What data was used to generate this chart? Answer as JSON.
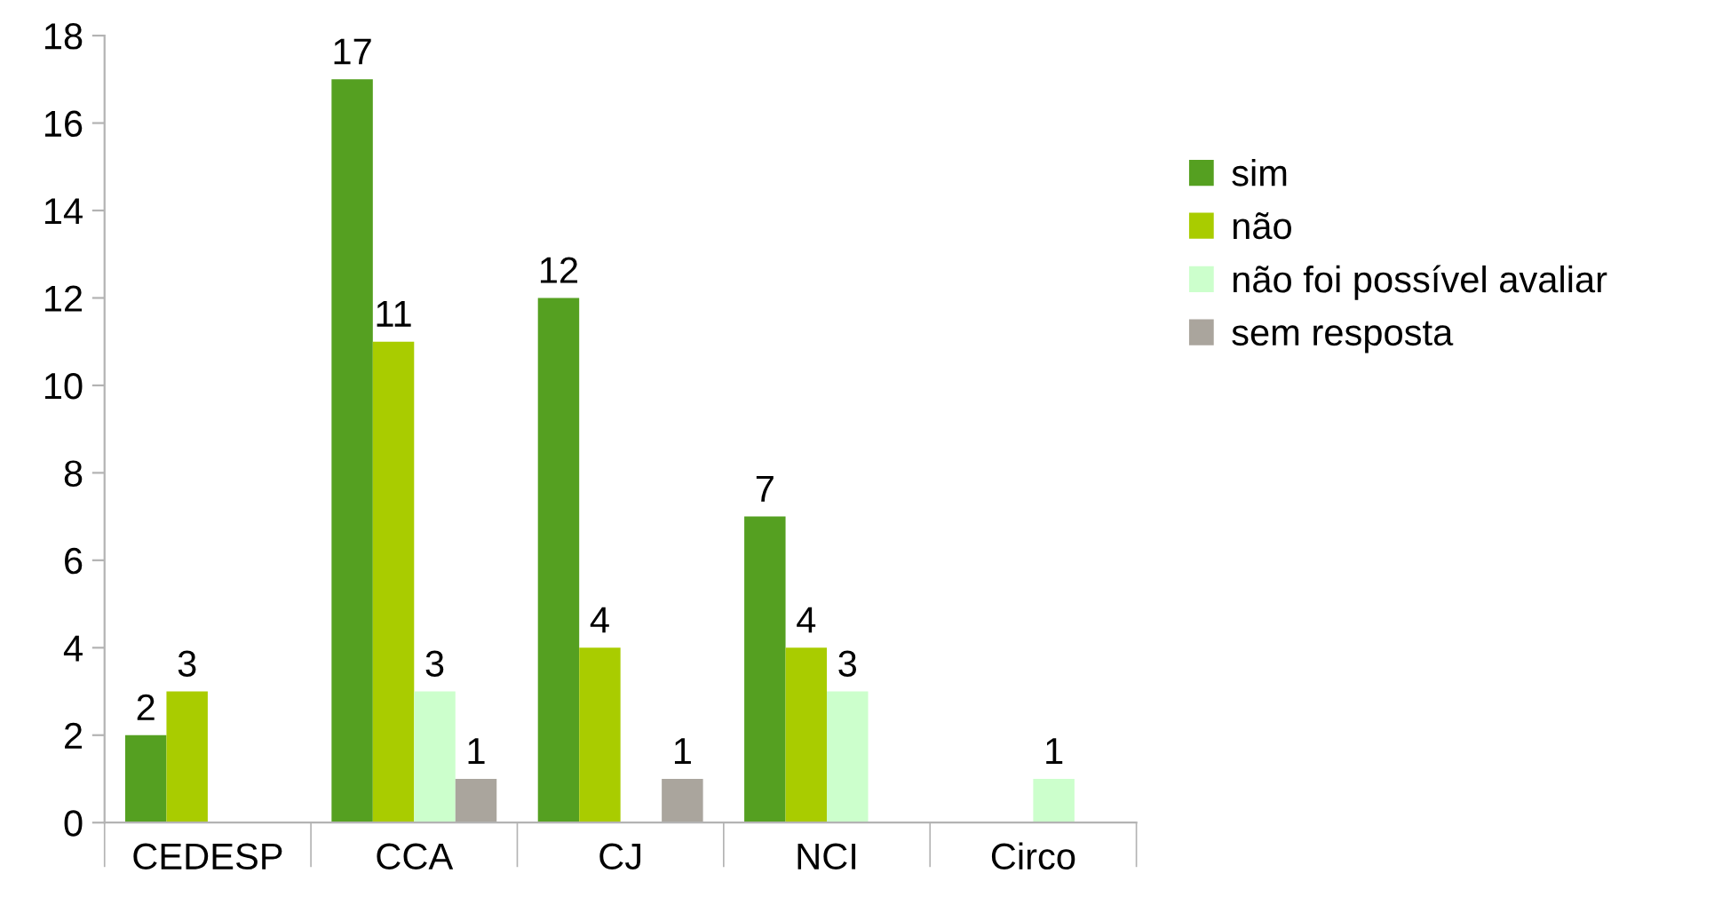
{
  "chart_data": {
    "type": "bar",
    "categories": [
      "CEDESP",
      "CCA",
      "CJ",
      "NCI",
      "Circo"
    ],
    "series": [
      {
        "name": "sim",
        "color": "#55a021",
        "values": [
          2,
          17,
          12,
          7,
          null
        ]
      },
      {
        "name": "não",
        "color": "#a9cc00",
        "values": [
          3,
          11,
          4,
          4,
          null
        ]
      },
      {
        "name": "não foi possível avaliar",
        "color": "#ccffcc",
        "values": [
          null,
          3,
          null,
          3,
          1
        ]
      },
      {
        "name": "sem resposta",
        "color": "#aaa59d",
        "values": [
          null,
          1,
          1,
          null,
          null
        ]
      }
    ],
    "ylim": [
      0,
      18
    ],
    "yticks": [
      0,
      2,
      4,
      6,
      8,
      10,
      12,
      14,
      16,
      18
    ],
    "grid": false,
    "legend": "right",
    "data_labels": true
  }
}
